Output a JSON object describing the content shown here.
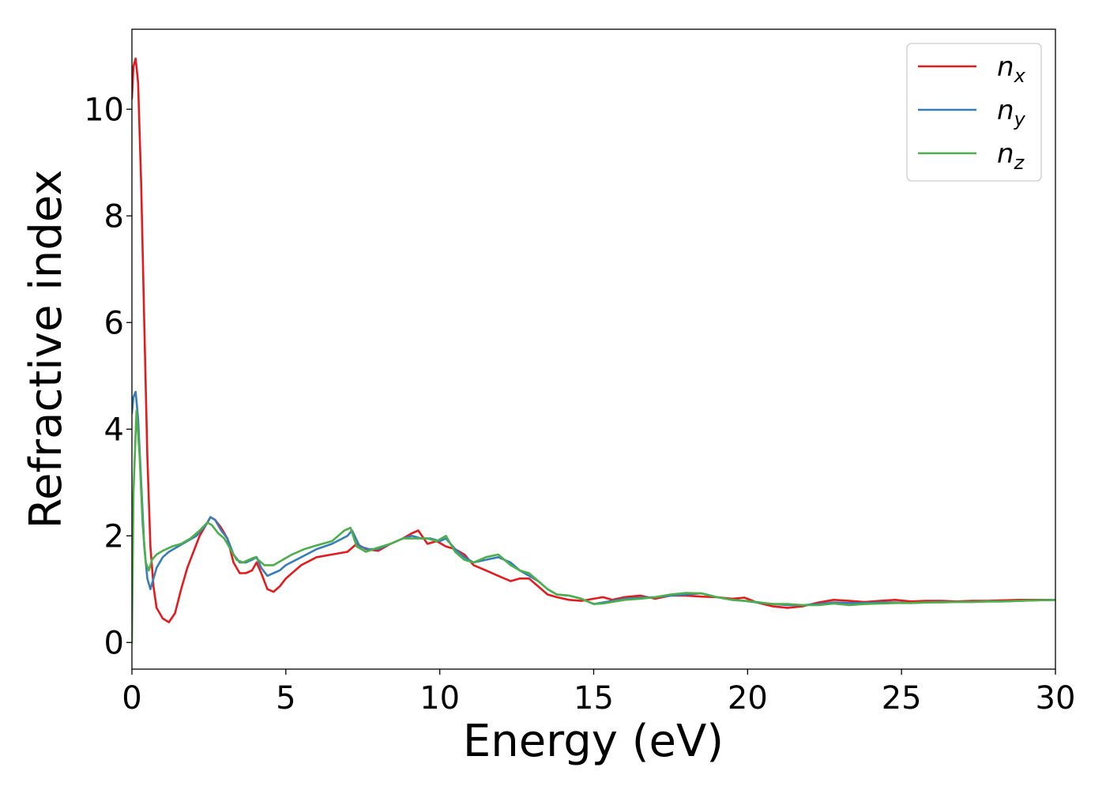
{
  "chart_data": {
    "type": "line",
    "xlabel": "Energy (eV)",
    "ylabel": "Refractive index",
    "xlim": [
      0,
      30
    ],
    "ylim": [
      -0.5,
      11.5
    ],
    "xticks": [
      0,
      5,
      10,
      15,
      20,
      25,
      30
    ],
    "yticks": [
      0,
      2,
      4,
      6,
      8,
      10
    ],
    "grid": false,
    "legend_position": "top-right",
    "series": [
      {
        "name": "n_x",
        "label_main": "n",
        "label_sub": "x",
        "color": "#e41a1c",
        "x": [
          0,
          0.05,
          0.12,
          0.2,
          0.3,
          0.4,
          0.5,
          0.6,
          0.7,
          0.8,
          1.0,
          1.2,
          1.4,
          1.6,
          1.8,
          2.0,
          2.2,
          2.4,
          2.55,
          2.7,
          2.9,
          3.1,
          3.3,
          3.5,
          3.7,
          3.9,
          4.05,
          4.2,
          4.4,
          4.6,
          4.8,
          5.0,
          5.5,
          6.0,
          6.5,
          7.0,
          7.3,
          7.6,
          8.0,
          8.4,
          8.8,
          9.1,
          9.3,
          9.6,
          9.9,
          10.2,
          10.5,
          10.8,
          11.1,
          11.5,
          11.9,
          12.3,
          12.6,
          12.9,
          13.2,
          13.5,
          13.8,
          14.2,
          14.6,
          15.0,
          15.3,
          15.6,
          16.0,
          16.5,
          17.0,
          17.5,
          18.0,
          18.5,
          19.0,
          19.5,
          19.9,
          20.3,
          20.8,
          21.3,
          21.8,
          22.3,
          22.8,
          23.3,
          23.8,
          24.3,
          24.8,
          25.3,
          25.8,
          26.3,
          26.8,
          27.3,
          27.8,
          28.3,
          28.8,
          29.3,
          30.0
        ],
        "y": [
          10.2,
          10.8,
          10.95,
          10.5,
          8.6,
          6.0,
          3.5,
          1.8,
          1.05,
          0.65,
          0.45,
          0.38,
          0.55,
          1.0,
          1.4,
          1.7,
          2.0,
          2.2,
          2.35,
          2.3,
          2.15,
          1.95,
          1.5,
          1.3,
          1.3,
          1.35,
          1.5,
          1.3,
          1.0,
          0.95,
          1.05,
          1.2,
          1.45,
          1.6,
          1.65,
          1.7,
          1.85,
          1.75,
          1.72,
          1.85,
          1.95,
          2.05,
          2.1,
          1.85,
          1.9,
          1.8,
          1.75,
          1.65,
          1.45,
          1.35,
          1.25,
          1.15,
          1.2,
          1.2,
          1.05,
          0.9,
          0.85,
          0.8,
          0.78,
          0.82,
          0.85,
          0.8,
          0.85,
          0.88,
          0.82,
          0.88,
          0.88,
          0.86,
          0.85,
          0.82,
          0.84,
          0.75,
          0.68,
          0.65,
          0.68,
          0.75,
          0.8,
          0.78,
          0.76,
          0.78,
          0.8,
          0.77,
          0.78,
          0.78,
          0.77,
          0.78,
          0.78,
          0.79,
          0.8,
          0.8,
          0.8
        ]
      },
      {
        "name": "n_y",
        "label_main": "n",
        "label_sub": "y",
        "color": "#377eb8",
        "x": [
          0,
          0.05,
          0.12,
          0.2,
          0.3,
          0.4,
          0.5,
          0.6,
          0.7,
          0.8,
          1.0,
          1.2,
          1.5,
          1.8,
          2.1,
          2.4,
          2.55,
          2.7,
          2.9,
          3.1,
          3.3,
          3.5,
          3.7,
          3.9,
          4.05,
          4.2,
          4.4,
          4.6,
          4.8,
          5.0,
          5.5,
          6.0,
          6.5,
          7.0,
          7.15,
          7.4,
          7.7,
          8.0,
          8.4,
          8.8,
          9.1,
          9.4,
          9.7,
          10.0,
          10.2,
          10.5,
          10.8,
          11.1,
          11.5,
          11.9,
          12.3,
          12.6,
          12.9,
          13.2,
          13.5,
          13.8,
          14.2,
          14.6,
          15.0,
          15.3,
          15.6,
          16.0,
          16.5,
          17.0,
          17.5,
          18.0,
          18.5,
          19.0,
          19.5,
          19.9,
          20.3,
          20.8,
          21.3,
          21.8,
          22.3,
          22.8,
          23.3,
          23.8,
          24.3,
          24.8,
          25.3,
          25.8,
          26.3,
          26.8,
          27.3,
          27.8,
          28.3,
          28.8,
          29.3,
          30.0
        ],
        "y": [
          4.3,
          4.6,
          4.7,
          4.2,
          3.0,
          1.8,
          1.2,
          1.0,
          1.2,
          1.4,
          1.6,
          1.7,
          1.8,
          1.9,
          2.0,
          2.2,
          2.35,
          2.3,
          2.1,
          1.95,
          1.65,
          1.5,
          1.5,
          1.55,
          1.6,
          1.4,
          1.25,
          1.3,
          1.35,
          1.45,
          1.6,
          1.75,
          1.85,
          2.0,
          2.1,
          1.8,
          1.75,
          1.75,
          1.85,
          1.95,
          2.0,
          1.95,
          1.95,
          1.9,
          1.95,
          1.75,
          1.6,
          1.5,
          1.55,
          1.6,
          1.5,
          1.35,
          1.25,
          1.15,
          1.0,
          0.9,
          0.88,
          0.82,
          0.72,
          0.75,
          0.78,
          0.82,
          0.84,
          0.85,
          0.88,
          0.9,
          0.92,
          0.85,
          0.8,
          0.78,
          0.75,
          0.72,
          0.7,
          0.7,
          0.72,
          0.75,
          0.74,
          0.74,
          0.75,
          0.75,
          0.74,
          0.75,
          0.76,
          0.76,
          0.76,
          0.77,
          0.77,
          0.78,
          0.79,
          0.8
        ]
      },
      {
        "name": "n_z",
        "label_main": "n",
        "label_sub": "z",
        "color": "#4daf4a",
        "x": [
          0,
          0.05,
          0.15,
          0.25,
          0.35,
          0.45,
          0.55,
          0.65,
          0.8,
          1.0,
          1.3,
          1.6,
          1.9,
          2.2,
          2.45,
          2.6,
          2.8,
          3.0,
          3.2,
          3.4,
          3.6,
          3.8,
          4.0,
          4.1,
          4.3,
          4.6,
          4.9,
          5.2,
          5.6,
          6.0,
          6.5,
          6.9,
          7.1,
          7.3,
          7.6,
          8.0,
          8.4,
          8.8,
          9.2,
          9.6,
          9.9,
          10.2,
          10.5,
          10.8,
          11.1,
          11.5,
          11.9,
          12.3,
          12.6,
          12.9,
          13.2,
          13.5,
          13.8,
          14.2,
          14.6,
          15.0,
          15.3,
          15.6,
          16.0,
          16.5,
          17.0,
          17.5,
          18.0,
          18.5,
          19.0,
          19.5,
          19.9,
          20.3,
          20.8,
          21.3,
          21.8,
          22.3,
          22.8,
          23.3,
          23.8,
          24.3,
          24.8,
          25.3,
          25.8,
          26.3,
          26.8,
          27.3,
          27.8,
          28.3,
          28.8,
          29.3,
          30.0
        ],
        "y": [
          0.0,
          2.8,
          4.35,
          3.5,
          2.2,
          1.5,
          1.35,
          1.55,
          1.65,
          1.72,
          1.8,
          1.85,
          1.95,
          2.1,
          2.25,
          2.2,
          2.05,
          1.95,
          1.75,
          1.55,
          1.5,
          1.55,
          1.6,
          1.55,
          1.45,
          1.45,
          1.55,
          1.65,
          1.75,
          1.82,
          1.9,
          2.1,
          2.15,
          1.8,
          1.7,
          1.78,
          1.85,
          1.95,
          1.95,
          1.95,
          1.9,
          2.0,
          1.7,
          1.55,
          1.5,
          1.6,
          1.65,
          1.45,
          1.35,
          1.3,
          1.15,
          1.0,
          0.9,
          0.88,
          0.82,
          0.72,
          0.73,
          0.76,
          0.8,
          0.82,
          0.85,
          0.9,
          0.93,
          0.92,
          0.85,
          0.8,
          0.78,
          0.76,
          0.72,
          0.72,
          0.7,
          0.7,
          0.73,
          0.7,
          0.72,
          0.73,
          0.74,
          0.74,
          0.75,
          0.75,
          0.76,
          0.76,
          0.77,
          0.77,
          0.78,
          0.79,
          0.8
        ]
      }
    ]
  }
}
